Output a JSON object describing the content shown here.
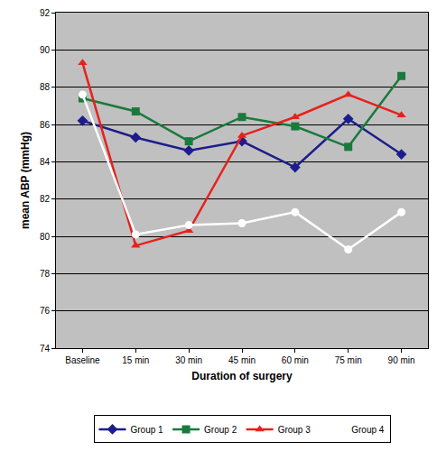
{
  "chart_data": {
    "type": "line",
    "x_label": "Duration of surgery",
    "y_label": "mean ABP (mmHg)",
    "categories": [
      "Baseline",
      "15 min",
      "30 min",
      "45 min",
      "60 min",
      "75 min",
      "90 min"
    ],
    "series": [
      {
        "name": "Group 1",
        "color": "#1c1c8c",
        "marker": "diamond",
        "values": [
          86.2,
          85.3,
          84.6,
          85.1,
          83.7,
          86.3,
          84.4
        ]
      },
      {
        "name": "Group 2",
        "color": "#1a7a3c",
        "marker": "square",
        "values": [
          87.4,
          86.7,
          85.1,
          86.4,
          85.9,
          84.8,
          88.6
        ]
      },
      {
        "name": "Group 3",
        "color": "#e8201c",
        "marker": "triangle-up",
        "values": [
          89.3,
          79.5,
          80.3,
          85.4,
          86.4,
          87.6,
          86.5
        ]
      },
      {
        "name": "Group 4",
        "color": "#ffffff",
        "marker": "circle",
        "values": [
          87.6,
          80.1,
          80.6,
          80.7,
          81.3,
          79.3,
          81.3
        ]
      }
    ],
    "ylim": [
      74,
      92
    ],
    "yticks": [
      74,
      76,
      78,
      80,
      82,
      84,
      86,
      88,
      90,
      92
    ],
    "grid": true,
    "legend": "bottom"
  }
}
